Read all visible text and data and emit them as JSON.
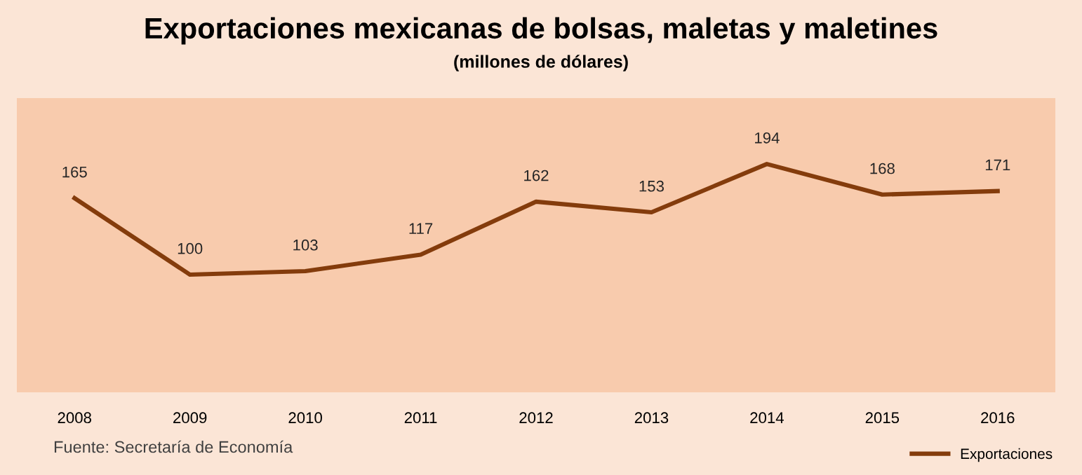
{
  "chart_data": {
    "type": "line",
    "title": "Exportaciones mexicanas de bolsas, maletas y maletines",
    "subtitle": "(millones de dólares)",
    "categories": [
      "2008",
      "2009",
      "2010",
      "2011",
      "2012",
      "2013",
      "2014",
      "2015",
      "2016"
    ],
    "series": [
      {
        "name": "Exportaciones",
        "color": "#843c0c",
        "values": [
          165,
          100,
          103,
          117,
          162,
          153,
          194,
          168,
          171
        ]
      }
    ],
    "ylim": [
      0,
      250
    ],
    "tick_labels": "x",
    "data_labels": true,
    "grid": false,
    "legend": "bottom right",
    "marker": "none",
    "line_style": "solid",
    "annotations": [
      "Fuente: Secretaría de Economía"
    ]
  }
}
